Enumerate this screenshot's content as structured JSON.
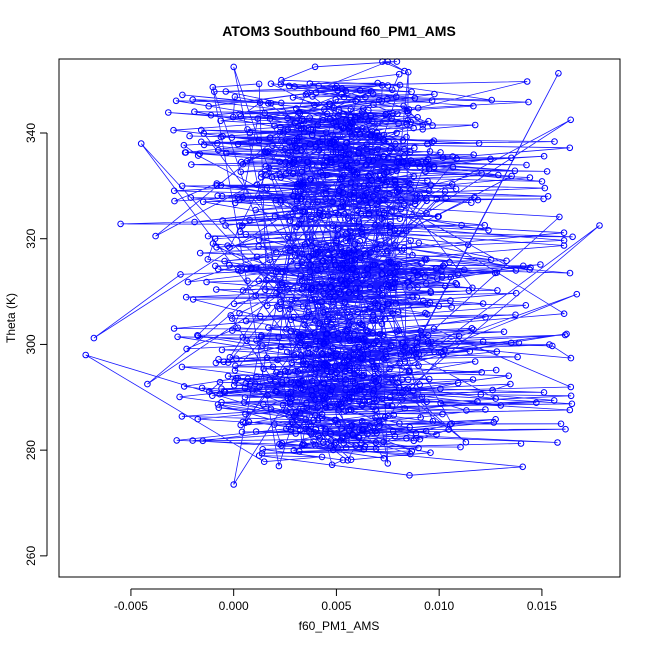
{
  "chart_data": {
    "type": "scatter",
    "title": "ATOM3 Southbound f60_PM1_AMS",
    "xlabel": "f60_PM1_AMS",
    "ylabel": "Theta (K)",
    "xlim": [
      -0.0085,
      0.0188
    ],
    "ylim": [
      256,
      354
    ],
    "x_ticks": [
      -0.005,
      0.0,
      0.005,
      0.01,
      0.015
    ],
    "x_tick_labels": [
      "-0.005",
      "0.000",
      "0.005",
      "0.010",
      "0.015"
    ],
    "y_ticks": [
      260,
      280,
      300,
      320,
      340
    ],
    "y_tick_labels": [
      "260",
      "280",
      "300",
      "320",
      "340"
    ],
    "grid": false,
    "legend": "none",
    "series_color": "#0000ff",
    "markers": "open-circle",
    "connected": true,
    "outliers": [
      {
        "x": -0.0072,
        "y": 298.0
      },
      {
        "x": -0.0068,
        "y": 301.2
      },
      {
        "x": -0.0055,
        "y": 322.8
      },
      {
        "x": -0.0045,
        "y": 338.0
      },
      {
        "x": -0.0038,
        "y": 320.5
      },
      {
        "x": -0.0042,
        "y": 292.5
      },
      {
        "x": 0.0,
        "y": 352.5
      },
      {
        "x": 0.0,
        "y": 273.5
      },
      {
        "x": 0.0085,
        "y": 351.5
      },
      {
        "x": 0.0158,
        "y": 351.3
      },
      {
        "x": 0.0178,
        "y": 322.5
      },
      {
        "x": 0.0167,
        "y": 309.5
      },
      {
        "x": 0.0164,
        "y": 342.5
      },
      {
        "x": 0.0162,
        "y": 302.0
      },
      {
        "x": 0.0113,
        "y": 281.5
      },
      {
        "x": 0.0075,
        "y": 277.5
      },
      {
        "x": 0.0022,
        "y": 277.0
      },
      {
        "x": 0.0035,
        "y": 284.0
      }
    ]
  }
}
